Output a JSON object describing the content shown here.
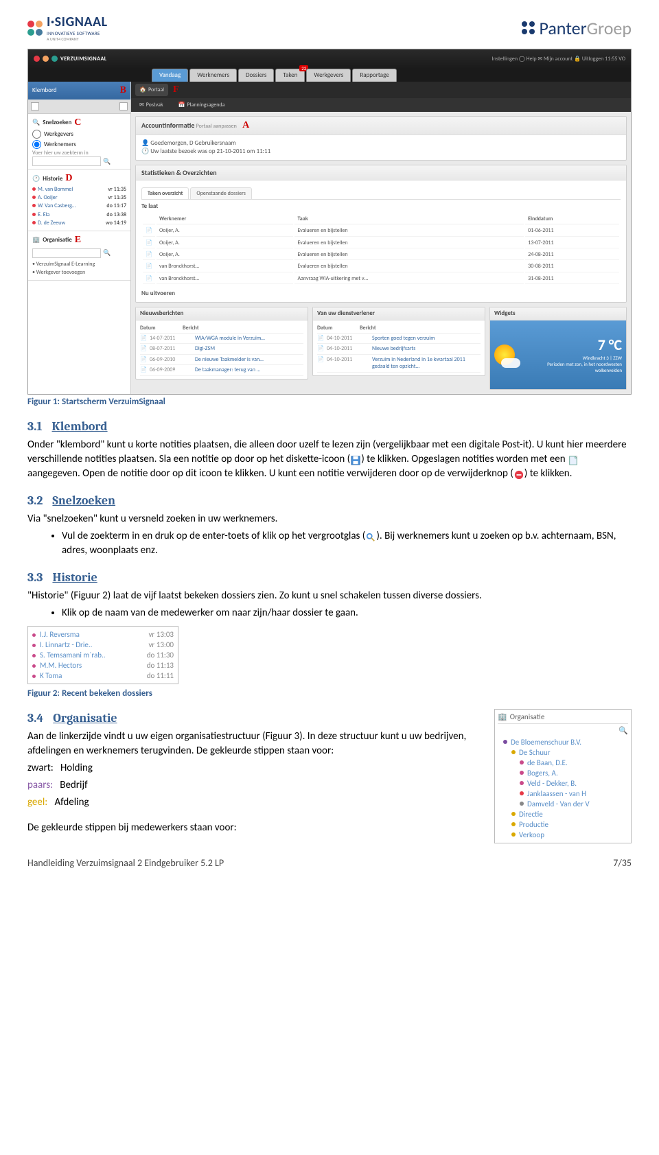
{
  "header": {
    "left_name": "I·SIGNAAL",
    "left_sub": "INNOVATIEVE SOFTWARE",
    "left_sub2": "A UNIT4 COMPANY",
    "left_dot_colors": [
      "#e63946",
      "#f4a261",
      "#2a9d8f",
      "#457b9d"
    ],
    "right_prefix": "Panter",
    "right_suffix": "Groep",
    "right_prefix_color": "#1a3a6e",
    "right_suffix_color": "#9e9e9e"
  },
  "fig1": {
    "app": "VERZUIMSIGNAAL",
    "topbar_right": "Instellingen   ◯ Help   ✉ Mijn account   🔒 Uitloggen   11:55  VO",
    "main_tabs": [
      "Vandaag",
      "Werknemers",
      "Dossiers",
      "Taken",
      "Werkgevers",
      "Rapportage"
    ],
    "tab_badge": "22",
    "klembord": "Klembord",
    "subtabs": [
      "Portaal",
      "Postvak",
      "Planningsagenda"
    ],
    "snelzoeken": "Snelzoeken",
    "radio1": "Werkgevers",
    "radio2": "Werknemers",
    "search_hint": "Voer hier uw zoekterm in",
    "historie": "Historie",
    "hist": [
      {
        "c": "#e63946",
        "n": "M. van Bommel",
        "t": "vr 11:35"
      },
      {
        "c": "#e63946",
        "n": "A. Ooijer",
        "t": "vr 11:35"
      },
      {
        "c": "#e63946",
        "n": "W. Van Casberg…",
        "t": "do 11:17"
      },
      {
        "c": "#e63946",
        "n": "E. Ela",
        "t": "do 13:38"
      },
      {
        "c": "#e63946",
        "n": "D. de Zeeuw",
        "t": "wo 14:19"
      }
    ],
    "organisatie": "Organisatie",
    "org_items": [
      "VerzuimSignaal E-Learning",
      "Werkgever toevoegen"
    ],
    "account_title": "Accountinformatie",
    "account_sub": "Portaal aanpassen",
    "greeting": "Goedemorgen, D Gebruikersnaam",
    "last_visit": "Uw laatste bezoek was op 21-10-2011 om 11:11",
    "stats_title": "Statistieken & Overzichten",
    "inner_tabs": [
      "Taken overzicht",
      "Openstaande dossiers"
    ],
    "telaat": "Te laat",
    "task_headers": [
      "Werknemer",
      "Taak",
      "Einddatum"
    ],
    "tasks": [
      [
        "Ooijer, A.",
        "Evalueren en bijstellen",
        "01-06-2011"
      ],
      [
        "Ooijer, A.",
        "Evalueren en bijstellen",
        "13-07-2011"
      ],
      [
        "Ooijer, A.",
        "Evalueren en bijstellen",
        "24-08-2011"
      ],
      [
        "van Bronckhorst…",
        "Evalueren en bijstellen",
        "30-08-2011"
      ],
      [
        "van Bronckhorst…",
        "Aanvraag WIA-uitkering met v…",
        "31-08-2011"
      ]
    ],
    "nu_uitvoeren": "Nu uitvoeren",
    "news_title": "Nieuwsberichten",
    "news_headers": [
      "Datum",
      "Bericht"
    ],
    "news": [
      {
        "d": "14-07-2011",
        "t": "WIA/WGA module in Verzuim…"
      },
      {
        "d": "08-07-2011",
        "t": "Digi-ZSM"
      },
      {
        "d": "06-09-2010",
        "t": "De nieuwe Taakmelder is van…"
      },
      {
        "d": "06-09-2009",
        "t": "De taakmanager: terug van …"
      }
    ],
    "dienst_title": "Van uw dienstverlener",
    "dienst": [
      {
        "d": "04-10-2011",
        "t": "Sporten goed tegen verzuim"
      },
      {
        "d": "04-10-2011",
        "t": "Nieuwe bedrijfsarts"
      },
      {
        "d": "04-10-2011",
        "t": "Verzuim in Nederland in 1e kwartaal 2011 gedaald ten opzicht…"
      }
    ],
    "widgets_title": "Widgets",
    "temp": "7 °C",
    "wind": "Windkracht 3 | ZZW",
    "weather_desc": "Perioden met zon, in het noordwesten wolkenvelden"
  },
  "caption1": "Figuur 1: Startscherm VerzuimSignaal",
  "sec31": {
    "num": "3.1",
    "title": "Klembord",
    "p1a": "Onder \"klembord\" kunt u korte notities plaatsen, die alleen door uzelf te lezen zijn (vergelijkbaar met een digitale Post-it). U kunt hier meerdere verschillende notities plaatsen. Sla een notitie op door op het diskette-icoon (",
    "p1b": ") te klikken. Opgeslagen notities worden met een ",
    "p1c": " aangegeven. Open de notitie door op dit icoon te klikken. U kunt een notitie verwijderen door op de verwijderknop (",
    "p1d": ") te klikken."
  },
  "sec32": {
    "num": "3.2",
    "title": "Snelzoeken",
    "intro": "Via \"snelzoeken\" kunt u versneld zoeken in uw werknemers.",
    "li1a": "Vul de zoekterm in en druk op de enter-toets of klik op het vergrootglas (",
    "li1b": "). Bij werknemers kunt u zoeken op b.v. achternaam, BSN, adres, woonplaats enz."
  },
  "sec33": {
    "num": "3.3",
    "title": "Historie",
    "intro": "\"Historie\" (Figuur 2) laat de vijf laatst bekeken dossiers zien. Zo kunt u snel schakelen tussen diverse dossiers.",
    "li1": "Klik op de naam van de medewerker om naar zijn/haar dossier te gaan."
  },
  "fig2": [
    {
      "c": "#c94a8a",
      "n": "I.J. Reversma",
      "t": "vr 13:03"
    },
    {
      "c": "#c94a8a",
      "n": "I. Linnartz - Drie..",
      "t": "vr 13:00"
    },
    {
      "c": "#c94a8a",
      "n": "S. Temsamani m`rab..",
      "t": "do 11:30"
    },
    {
      "c": "#c94a8a",
      "n": "M.M. Hectors",
      "t": "do 11:13"
    },
    {
      "c": "#c94a8a",
      "n": "K Toma",
      "t": "do 11:11"
    }
  ],
  "caption2": "Figuur 2: Recent bekeken dossiers",
  "sec34": {
    "num": "3.4",
    "title": "Organisatie",
    "p1": "Aan de linkerzijde vindt u uw eigen organisatiestructuur (Figuur 3). In deze structuur kunt u uw bedrijven, afdelingen en werknemers terugvinden. De gekleurde stippen staan voor:",
    "legend": [
      {
        "k": "zwart:",
        "v": "Holding",
        "cls": "col-zwart"
      },
      {
        "k": "paars:",
        "v": "Bedrijf",
        "cls": "col-paars"
      },
      {
        "k": "geel:",
        "v": "Afdeling",
        "cls": "col-geel"
      }
    ],
    "p2": "De gekleurde stippen bij medewerkers staan voor:"
  },
  "fig3": {
    "title": "Organisatie",
    "items": [
      {
        "i": 0,
        "c": "#7a4ca0",
        "t": "De Bloemenschuur B.V."
      },
      {
        "i": 1,
        "c": "#d9a800",
        "t": "De Schuur"
      },
      {
        "i": 2,
        "c": "#c94a8a",
        "t": "de Baan, D.E."
      },
      {
        "i": 2,
        "c": "#c94a8a",
        "t": "Bogers, A."
      },
      {
        "i": 2,
        "c": "#c94a8a",
        "t": "Veld - Dekker, B."
      },
      {
        "i": 2,
        "c": "#e63946",
        "t": "Janklaassen - van H"
      },
      {
        "i": 2,
        "c": "#888",
        "t": "Damveld - Van der V"
      },
      {
        "i": 1,
        "c": "#d9a800",
        "t": "Directie"
      },
      {
        "i": 1,
        "c": "#d9a800",
        "t": "Productie"
      },
      {
        "i": 1,
        "c": "#d9a800",
        "t": "Verkoop"
      }
    ]
  },
  "footer": {
    "left": "Handleiding Verzuimsignaal 2 Eindgebruiker 5.2 LP",
    "right": "7/35"
  }
}
